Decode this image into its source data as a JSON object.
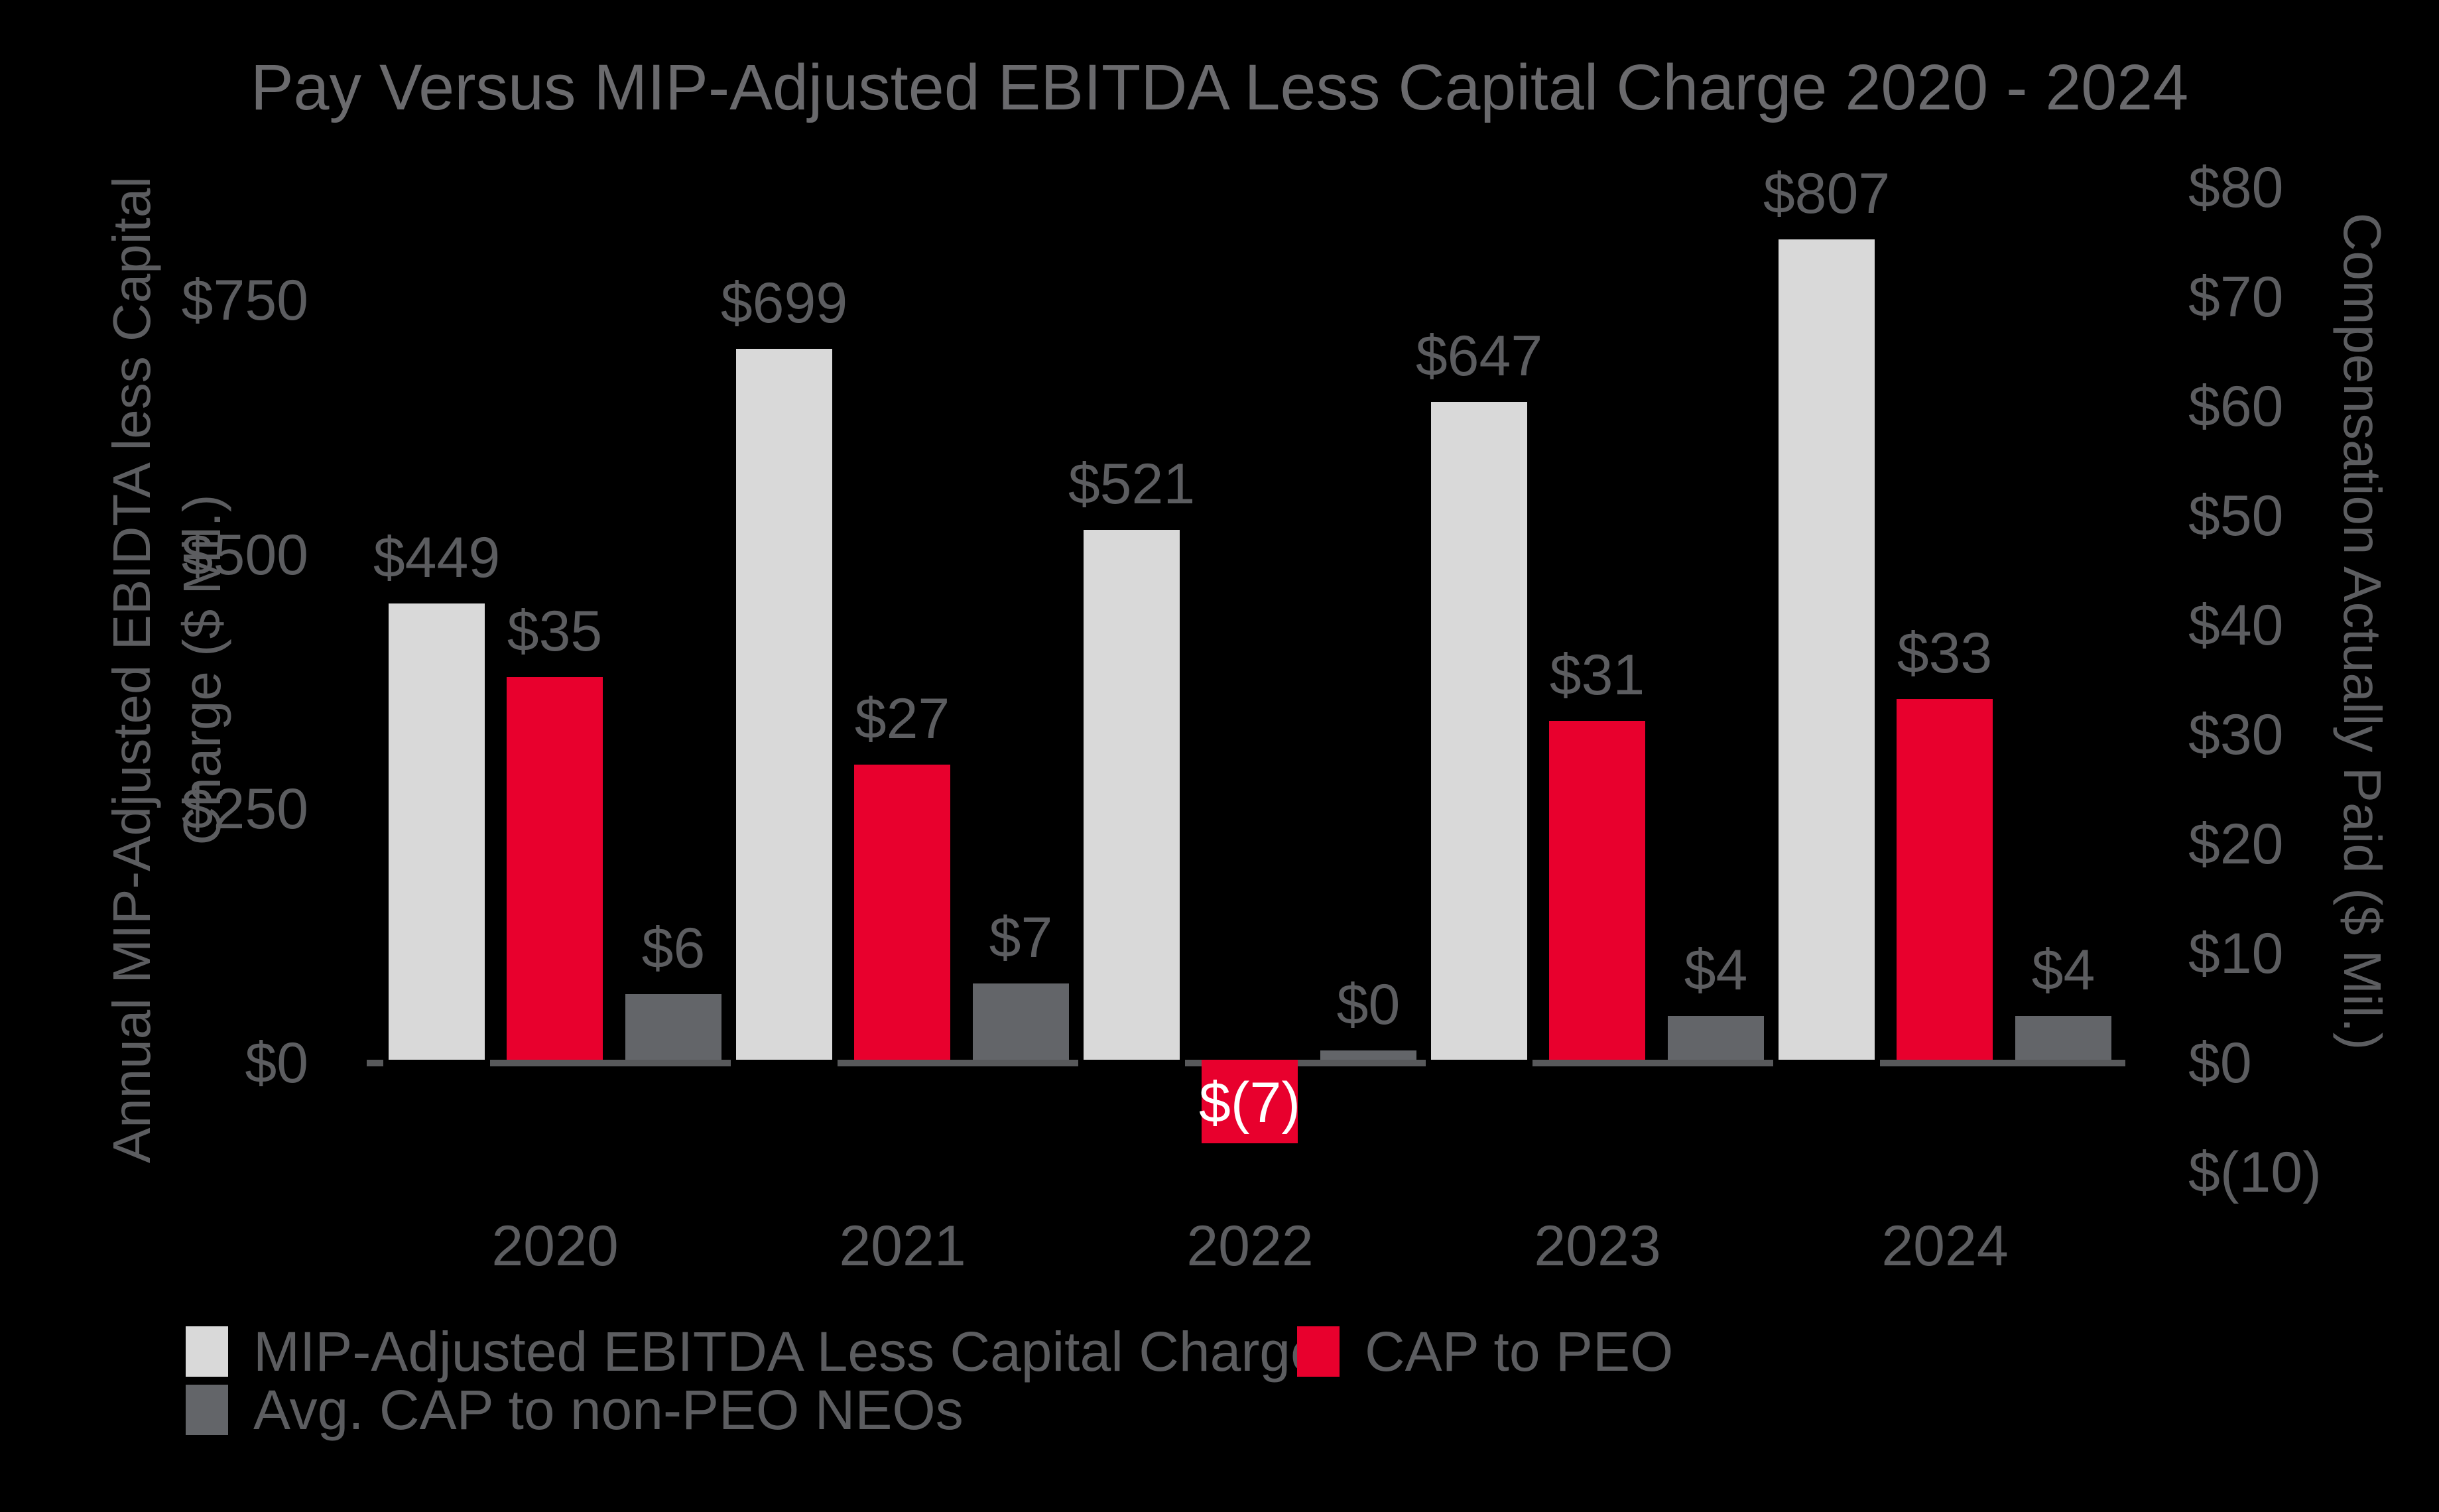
{
  "title": "Pay Versus MIP-Adjusted EBITDA Less Capital Charge 2020 - 2024",
  "colors": {
    "background": "#000000",
    "bar_light_gray": "#d9d9d9",
    "bar_red": "#e8002d",
    "bar_dark_gray": "#636569",
    "axis_line": "#58595b",
    "text_gray": "#5c5d60",
    "title_gray": "#6a6a6d",
    "negative_label": "#ffffff"
  },
  "left_axis": {
    "title_line1": "Annual MIP-Adjusted EBIDTA less Capital",
    "title_line2": "Charge ($ Mil.)",
    "ticks": [
      "$750",
      "$500",
      "$250",
      "$0"
    ],
    "tick_values": [
      750,
      500,
      250,
      0
    ]
  },
  "right_axis": {
    "title": "Compensation Actually Paid ($ Mil.)",
    "ticks": [
      "$80",
      "$70",
      "$60",
      "$50",
      "$40",
      "$30",
      "$20",
      "$10",
      "$0",
      "$(10)"
    ],
    "tick_values": [
      80,
      70,
      60,
      50,
      40,
      30,
      20,
      10,
      0,
      -10
    ]
  },
  "legend": {
    "items": [
      {
        "label": "MIP-Adjusted EBITDA Less Capital Charge",
        "color": "#d9d9d9"
      },
      {
        "label": "CAP to PEO",
        "color": "#e8002d"
      },
      {
        "label": "Avg. CAP to non-PEO NEOs",
        "color": "#636569"
      }
    ]
  },
  "chart_data": {
    "type": "bar",
    "categories": [
      "2020",
      "2021",
      "2022",
      "2023",
      "2024"
    ],
    "series": [
      {
        "name": "MIP-Adjusted EBITDA Less Capital Charge",
        "axis": "left",
        "color": "#d9d9d9",
        "values": [
          449,
          699,
          521,
          647,
          807
        ],
        "labels": [
          "$449",
          "$699",
          "$521",
          "$647",
          "$807"
        ]
      },
      {
        "name": "CAP to PEO",
        "axis": "right",
        "color": "#e8002d",
        "values": [
          35,
          27,
          -7,
          31,
          33
        ],
        "labels": [
          "$35",
          "$27",
          "$(7)",
          "$31",
          "$33"
        ]
      },
      {
        "name": "Avg. CAP to non-PEO NEOs",
        "axis": "right",
        "color": "#636569",
        "values": [
          6,
          7,
          0,
          4,
          4
        ],
        "labels": [
          "$6",
          "$7",
          "$0",
          "$4",
          "$4"
        ]
      }
    ],
    "title": "Pay Versus MIP-Adjusted EBITDA Less Capital Charge 2020 - 2024",
    "xlabel": "",
    "ylabel_left": "Annual MIP-Adjusted EBIDTA less Capital Charge ($ Mil.)",
    "ylabel_right": "Compensation Actually Paid ($ Mil.)",
    "left_axis_range": [
      0,
      750
    ],
    "right_axis_range": [
      -10,
      80
    ],
    "grid": false,
    "value_labels": true,
    "legend_position": "bottom-left"
  }
}
